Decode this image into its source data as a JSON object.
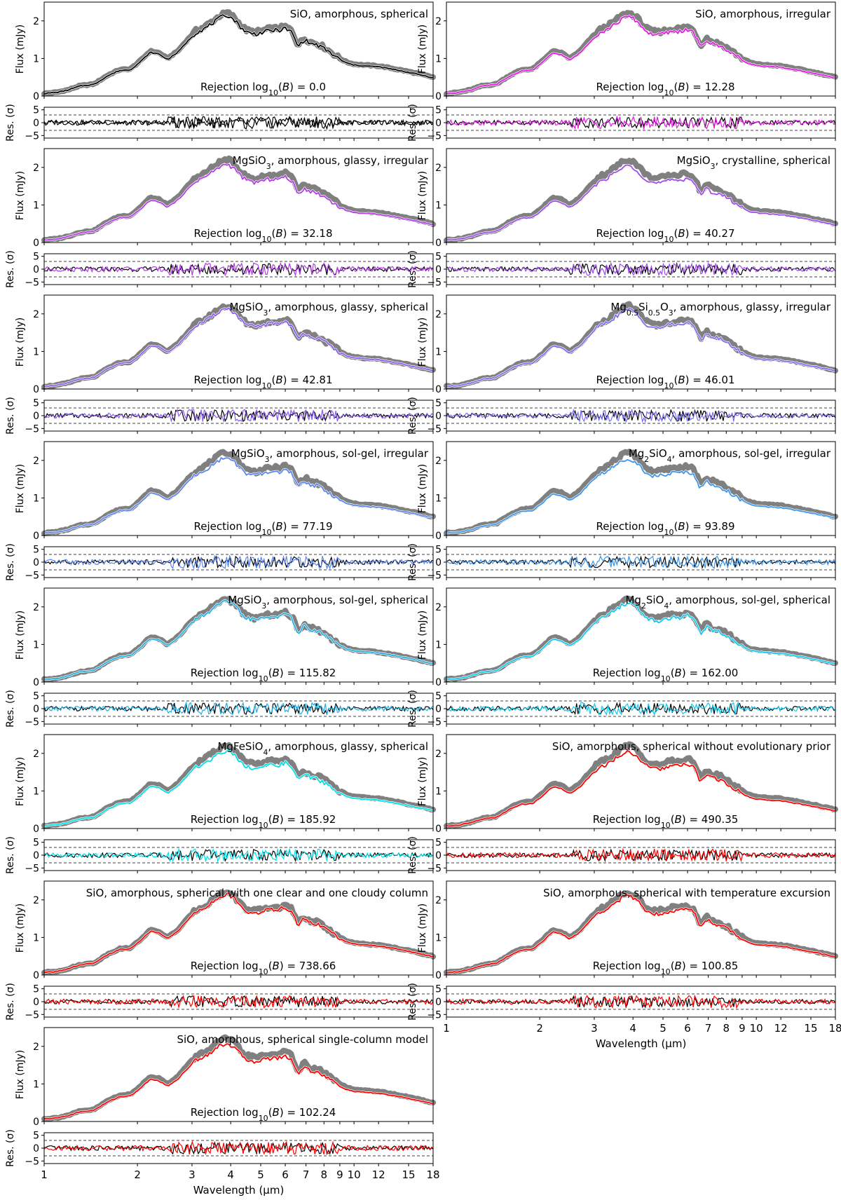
{
  "chart_data": {
    "type": "line",
    "x_scale": "log",
    "xlim": [
      1,
      18
    ],
    "xlabel": "Wavelength (μm)",
    "xticks": [
      1,
      2,
      3,
      4,
      5,
      6,
      7,
      8,
      9,
      10,
      12,
      15,
      18
    ],
    "xtick_labels": [
      "1",
      "2",
      "3",
      "4",
      "5",
      "6",
      "7",
      "8",
      "9",
      "10",
      "12",
      "15",
      "18"
    ],
    "flux_axis": {
      "ylabel": "Flux (mJy)",
      "ylim": [
        0,
        2.5
      ],
      "yticks": [
        0,
        1,
        2
      ],
      "ytick_labels": [
        "0",
        "1",
        "2"
      ]
    },
    "residual_axis": {
      "ylabel": "Res. (σ)",
      "ylim": [
        -6,
        6
      ],
      "yticks": [
        -5,
        0,
        5
      ],
      "ytick_labels": [
        "−5",
        "0",
        "5"
      ],
      "reference_lines": [
        -3,
        3
      ]
    },
    "observed_spectrum": {
      "name": "observed",
      "color": "#808080",
      "x": [
        1.0,
        1.1,
        1.2,
        1.3,
        1.45,
        1.6,
        1.75,
        1.9,
        2.05,
        2.2,
        2.35,
        2.5,
        2.7,
        2.9,
        3.1,
        3.3,
        3.5,
        3.7,
        3.9,
        4.1,
        4.3,
        4.5,
        4.8,
        5.1,
        5.4,
        5.7,
        6.0,
        6.3,
        6.6,
        6.9,
        7.2,
        7.6,
        8.0,
        8.5,
        9.0,
        9.5,
        10.0,
        11.0,
        12.0,
        13.0,
        14.0,
        15.0,
        16.0,
        17.0,
        18.0
      ],
      "y": [
        0.07,
        0.1,
        0.17,
        0.27,
        0.32,
        0.55,
        0.7,
        0.72,
        0.95,
        1.2,
        1.15,
        1.0,
        1.2,
        1.5,
        1.75,
        1.85,
        2.0,
        2.15,
        2.22,
        2.1,
        1.9,
        1.75,
        1.7,
        1.75,
        1.8,
        1.8,
        1.85,
        1.75,
        1.35,
        1.55,
        1.45,
        1.4,
        1.3,
        1.15,
        1.0,
        0.9,
        0.85,
        0.82,
        0.8,
        0.75,
        0.7,
        0.65,
        0.6,
        0.55,
        0.5
      ]
    },
    "panels": [
      {
        "title": "SiO, amorphous, spherical",
        "rejection": "Rejection log10(B) = 0.0",
        "color": "#000000"
      },
      {
        "title": "SiO, amorphous, irregular",
        "rejection": "Rejection log10(B) = 12.28",
        "color": "#e018e0"
      },
      {
        "title": "MgSiO3, amorphous, glassy, irregular",
        "rejection": "Rejection log10(B) = 32.18",
        "color": "#b43ce8"
      },
      {
        "title": "MgSiO3, crystalline, spherical",
        "rejection": "Rejection log10(B) = 40.27",
        "color": "#a04cec"
      },
      {
        "title": "MgSiO3, amorphous, glassy, spherical",
        "rejection": "Rejection log10(B) = 42.81",
        "color": "#8a5cf0"
      },
      {
        "title": "Mg0.5Si0.5O3, amorphous, glassy, irregular",
        "rejection": "Rejection log10(B) = 46.01",
        "color": "#7a6ef2"
      },
      {
        "title": "MgSiO3, amorphous, sol-gel, irregular",
        "rejection": "Rejection log10(B) = 77.19",
        "color": "#5a86ee"
      },
      {
        "title": "Mg2SiO4, amorphous, sol-gel, irregular",
        "rejection": "Rejection log10(B) = 93.89",
        "color": "#3c96ec"
      },
      {
        "title": "MgSiO3, amorphous, sol-gel, spherical",
        "rejection": "Rejection log10(B) = 115.82",
        "color": "#20b0e4"
      },
      {
        "title": "Mg2SiO4, amorphous, sol-gel, spherical",
        "rejection": "Rejection log10(B) = 162.00",
        "color": "#10c8ee"
      },
      {
        "title": "MgFeSiO4, amorphous, glassy, spherical",
        "rejection": "Rejection log10(B) = 185.92",
        "color": "#00e0e8"
      },
      {
        "title": "SiO, amorphous, spherical without evolutionary prior",
        "rejection": "Rejection log10(B) = 490.35",
        "color": "#ff0000"
      },
      {
        "title": "SiO, amorphous, spherical with one clear and one cloudy column",
        "rejection": "Rejection log10(B) = 738.66",
        "color": "#ff0000"
      },
      {
        "title": "SiO, amorphous, spherical with temperature excursion",
        "rejection": "Rejection log10(B) = 100.85",
        "color": "#ff0000"
      },
      {
        "title": "SiO, amorphous, spherical single-column model",
        "rejection": "Rejection log10(B) = 102.24",
        "color": "#ff0000"
      }
    ]
  }
}
